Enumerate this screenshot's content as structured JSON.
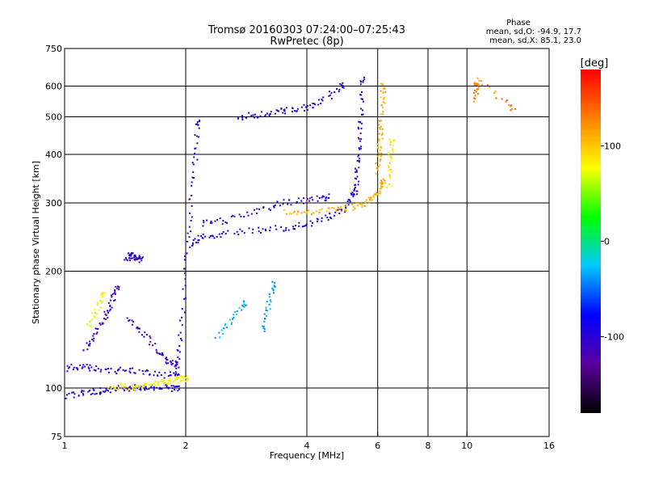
{
  "chart_data": {
    "type": "scatter",
    "title": "Tromsø 20160303 07:24:00–07:25:43",
    "subtitle": "RwPretec (8p)",
    "xlabel": "Frequency [MHz]",
    "ylabel": "Stationary phase Virtual Height [km]",
    "x_scale": "log",
    "y_scale": "log",
    "xlim": [
      1,
      16
    ],
    "ylim": [
      75,
      750
    ],
    "x_ticks": [
      1,
      2,
      4,
      6,
      8,
      10,
      16
    ],
    "y_ticks": [
      75,
      100,
      200,
      300,
      400,
      500,
      600,
      750
    ],
    "x_gridlines": [
      2,
      4,
      6,
      8,
      10
    ],
    "y_gridlines": [
      100,
      200,
      300,
      400,
      500,
      600
    ],
    "grid": true,
    "phase_stats": {
      "heading": "Phase",
      "line_o": "mean, sd,O: -94.9, 17.7",
      "line_x": "mean, sd,X: 85.1, 23.0"
    },
    "colorbar": {
      "unit": "[deg]",
      "range": [
        -180,
        180
      ],
      "ticks": [
        100,
        0,
        -100
      ],
      "tick_labels": [
        "100",
        "0",
        "-100"
      ],
      "colormap": "rainbow",
      "stops": [
        "#000000",
        "#5a00a0",
        "#0000ff",
        "#00c8ff",
        "#00ff00",
        "#ffff00",
        "#ff8000",
        "#ff0000"
      ]
    },
    "traces": [
      {
        "mode": "O",
        "x": [
          1.0,
          1.1,
          1.2,
          1.35,
          1.5,
          1.7,
          1.9
        ],
        "y": [
          112,
          114,
          112,
          111,
          111,
          108,
          108
        ],
        "phase": -100
      },
      {
        "mode": "O",
        "x": [
          1.0,
          1.1,
          1.2,
          1.3,
          1.4,
          1.5,
          1.6,
          1.75,
          1.9
        ],
        "y": [
          95,
          97,
          98,
          99,
          100,
          100,
          100,
          100,
          100
        ],
        "phase": -100
      },
      {
        "mode": "O",
        "x": [
          1.12,
          1.18,
          1.25,
          1.3,
          1.35
        ],
        "y": [
          125,
          135,
          150,
          165,
          180
        ],
        "phase": -110
      },
      {
        "mode": "O",
        "x": [
          1.42,
          1.46,
          1.5,
          1.55
        ],
        "y": [
          215,
          220,
          218,
          215
        ],
        "phase": -105
      },
      {
        "mode": "O",
        "x": [
          1.45,
          1.55,
          1.7,
          1.8,
          1.9
        ],
        "y": [
          150,
          140,
          125,
          118,
          115
        ],
        "phase": -110
      },
      {
        "mode": "O",
        "x": [
          1.9,
          1.95,
          2.0,
          2.05,
          2.1,
          2.15
        ],
        "y": [
          110,
          140,
          200,
          280,
          380,
          480
        ],
        "phase": -100
      },
      {
        "mode": "O",
        "x": [
          2.05,
          2.2,
          2.5,
          3.0,
          3.5,
          4.0,
          4.5,
          5.0,
          5.3
        ],
        "y": [
          235,
          245,
          250,
          255,
          258,
          265,
          275,
          290,
          320
        ],
        "phase": -95
      },
      {
        "mode": "O",
        "x": [
          2.2,
          2.5,
          3.0,
          3.5,
          4.0,
          4.5
        ],
        "y": [
          265,
          270,
          285,
          300,
          305,
          310
        ],
        "phase": -100
      },
      {
        "mode": "O",
        "x": [
          5.3,
          5.35,
          5.4,
          5.45,
          5.5
        ],
        "y": [
          320,
          370,
          430,
          500,
          620
        ],
        "phase": -105
      },
      {
        "mode": "O",
        "x": [
          2.7,
          3.0,
          3.3,
          3.6,
          4.0,
          4.4,
          4.9
        ],
        "y": [
          500,
          505,
          510,
          520,
          530,
          550,
          600
        ],
        "phase": -100
      },
      {
        "mode": "O",
        "x": [
          2.4,
          2.6,
          2.8
        ],
        "y": [
          135,
          150,
          165
        ],
        "phase": -30
      },
      {
        "mode": "O",
        "x": [
          3.1,
          3.2,
          3.3
        ],
        "y": [
          140,
          160,
          185
        ],
        "phase": -40
      },
      {
        "mode": "X",
        "x": [
          3.5,
          4.0,
          4.5,
          5.0,
          5.5,
          5.8,
          6.0,
          6.2
        ],
        "y": [
          285,
          282,
          285,
          290,
          298,
          308,
          320,
          340
        ],
        "phase": 110
      },
      {
        "mode": "X",
        "x": [
          6.0,
          6.05,
          6.1,
          6.15,
          6.2
        ],
        "y": [
          360,
          400,
          450,
          520,
          600
        ],
        "phase": 110
      },
      {
        "mode": "X",
        "x": [
          6.4,
          6.45,
          6.5
        ],
        "y": [
          330,
          380,
          430
        ],
        "phase": 90
      },
      {
        "mode": "X",
        "x": [
          1.3,
          1.4,
          1.5,
          1.6,
          1.7,
          1.8,
          1.9,
          2.0
        ],
        "y": [
          100,
          101,
          100,
          102,
          103,
          104,
          105,
          106
        ],
        "phase": 80
      },
      {
        "mode": "X",
        "x": [
          1.15,
          1.2,
          1.25
        ],
        "y": [
          145,
          160,
          175
        ],
        "phase": 80
      },
      {
        "mode": "X",
        "x": [
          10.5,
          10.55,
          10.6,
          13.0
        ],
        "y": [
          550,
          600,
          620,
          530
        ],
        "phase": 130
      }
    ]
  }
}
